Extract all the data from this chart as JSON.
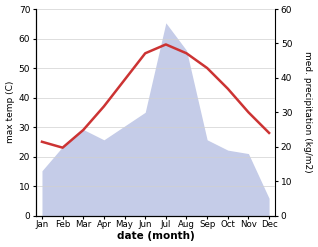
{
  "months": [
    "Jan",
    "Feb",
    "Mar",
    "Apr",
    "May",
    "Jun",
    "Jul",
    "Aug",
    "Sep",
    "Oct",
    "Nov",
    "Dec"
  ],
  "temperature": [
    25,
    23,
    29,
    37,
    46,
    55,
    58,
    55,
    50,
    43,
    35,
    28
  ],
  "precipitation": [
    13,
    20,
    25,
    22,
    26,
    30,
    56,
    48,
    22,
    19,
    18,
    5
  ],
  "temp_color": "#cc3333",
  "precip_fill_color": "#c5cce8",
  "temp_ylim": [
    0,
    70
  ],
  "precip_ylim": [
    0,
    60
  ],
  "xlabel": "date (month)",
  "ylabel_left": "max temp (C)",
  "ylabel_right": "med. precipitation (kg/m2)",
  "bg_color": "#ffffff",
  "grid_color": "#d0d0d0",
  "yticks_left": [
    0,
    10,
    20,
    30,
    40,
    50,
    60,
    70
  ],
  "yticks_right": [
    0,
    10,
    20,
    30,
    40,
    50,
    60
  ]
}
